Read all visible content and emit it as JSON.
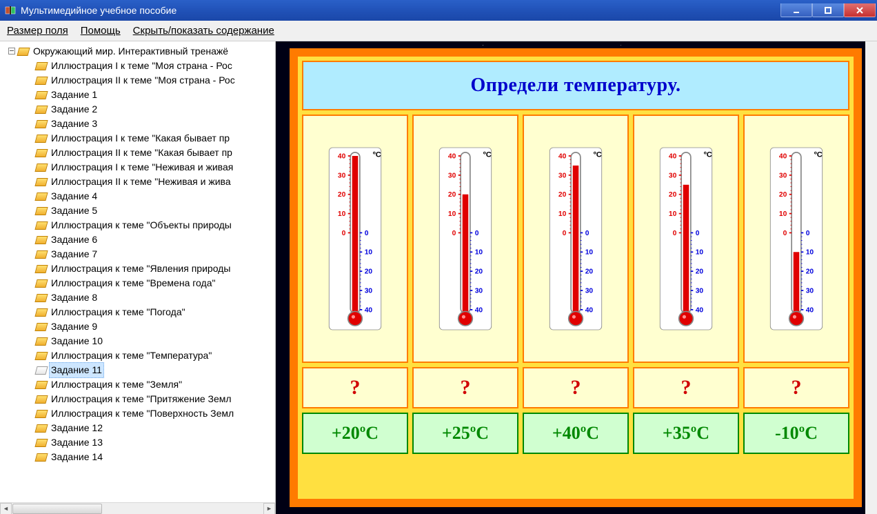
{
  "window": {
    "title": "Мультимедийное учебное пособие"
  },
  "menu": {
    "item0": "Размер поля",
    "item1": "Помощь",
    "item2": "Скрыть/показать содержание"
  },
  "tree": {
    "root": "Окружающий мир. Интерактивный тренажё",
    "items": [
      "Иллюстрация I к теме \"Моя страна - Рос",
      "Иллюстрация II к теме \"Моя страна - Рос",
      "Задание 1",
      "Задание 2",
      "Задание 3",
      "Иллюстрация I к теме \"Какая бывает пр",
      "Иллюстрация II к теме \"Какая бывает пр",
      "Иллюстрация I к теме \"Неживая и живая",
      "Иллюстрация II к теме \"Неживая и жива",
      "Задание 4",
      "Задание 5",
      "Иллюстрация к теме \"Объекты природы",
      "Задание 6",
      "Задание 7",
      "Иллюстрация к теме \"Явления природы",
      "Иллюстрация к теме \"Времена года\"",
      "Задание 8",
      "Иллюстрация к теме \"Погода\"",
      "Задание 9",
      "Задание 10",
      "Иллюстрация к теме \"Температура\"",
      "Задание 11",
      "Иллюстрация к теме \"Земля\"",
      "Иллюстрация к теме \"Притяжение Земл",
      "Иллюстрация к теме \"Поверхность Земл",
      "Задание 12",
      "Задание 13",
      "Задание 14"
    ],
    "selected_index": 21
  },
  "slide": {
    "title": "Определи температуру.",
    "thermometers": [
      {
        "temp": 40,
        "question": "?"
      },
      {
        "temp": 20,
        "question": "?"
      },
      {
        "temp": 35,
        "question": "?"
      },
      {
        "temp": 25,
        "question": "?"
      },
      {
        "temp": -10,
        "question": "?"
      }
    ],
    "answers": [
      "+20ºC",
      "+25ºC",
      "+40ºC",
      "+35ºC",
      "-10ºC"
    ],
    "scale": {
      "min": -40,
      "max": 40,
      "step": 10,
      "unit_label": "ºC",
      "left_ticks": [
        40,
        30,
        20,
        10,
        0
      ],
      "right_ticks": [
        0,
        10,
        20,
        30,
        40
      ]
    },
    "colors": {
      "slide_outer": "#ff7b00",
      "slide_border": "#ffe040",
      "title_bg": "#b0ecff",
      "title_color": "#0000cc",
      "card_bg": "#ffffd0",
      "card_border": "#ff7b00",
      "question_color": "#d00000",
      "answer_bg": "#d0ffd0",
      "answer_border": "#008800",
      "answer_color": "#008800",
      "mercury": "#e00000",
      "scale_left": "#e00000",
      "scale_right": "#0000dd",
      "tube_border": "#888888"
    }
  }
}
